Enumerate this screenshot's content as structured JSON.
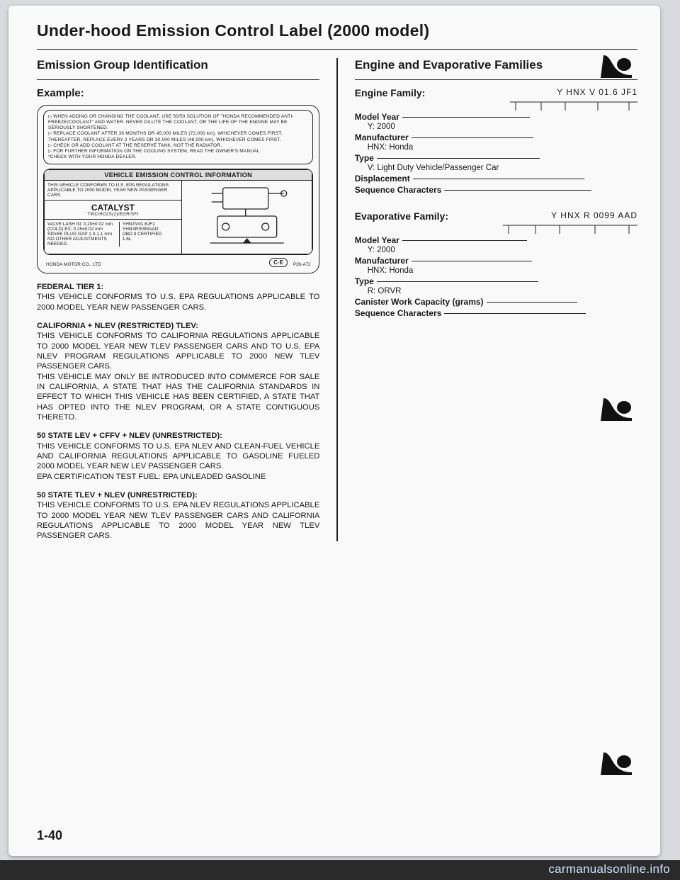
{
  "title": "Under-hood Emission Control Label (2000 model)",
  "left": {
    "section": "Emission Group Identification",
    "example": "Example:",
    "label_box": {
      "notes": [
        "▷ WHEN ADDING OR CHANGING THE COOLANT, USE 50/50 SOLUTION OF \"HONDA RECOMMENDED ANTI-FREEZE/COOLANT\" AND WATER. NEVER DILUTE THE COOLANT, OR THE LIFE OF THE ENGINE MAY BE SERIOUSLY SHORTENED.",
        "▷ REPLACE COOLANT AFTER 36 MONTHS OR 45,000 MILES (72,000 km), WHICHEVER COMES FIRST. THEREAFTER, REPLACE EVERY 2 YEARS OR 30,000 MILES (48,000 km), WHICHEVER COMES FIRST.",
        "▷ CHECK OR ADD COOLANT AT THE RESERVE TANK, NOT THE RADIATOR.",
        "▷ FOR FURTHER INFORMATION ON THE COOLING SYSTEM, READ THE OWNER'S MANUAL.",
        "*CHECK WITH YOUR HONDA DEALER."
      ],
      "veci_header": "VEHICLE EMISSION CONTROL INFORMATION",
      "veci_note": "THIS VEHICLE CONFORMS TO U.S. EPA REGULATIONS APPLICABLE TO 2000 MODEL YEAR NEW PASSENGER CARS.",
      "catalyst": "CATALYST",
      "catalyst_sub": "TWC/HO2S(2)/EGR/SFI",
      "specs": [
        "VALVE LASH   IN: 0.20±0.02 mm",
        "(COLD)       EX: 0.25±0.02 mm",
        "SPARK PLUG GAP        1.0-1.1 mm",
        "NO OTHER ADJUSTMENTS NEEDED."
      ],
      "right_specs": [
        "YHNXV01.6JF1",
        "YHNXR0099AAD",
        "OBD II CERTIFIED",
        "1.6L"
      ],
      "ce": "C·E",
      "ce_sub": "P2N-A72",
      "hmc": "HONDA MOTOR CO., LTD"
    },
    "paragraphs": [
      {
        "heading": "FEDERAL TIER 1:",
        "body": "THIS VEHICLE CONFORMS TO U.S. EPA REGULATIONS APPLICABLE TO 2000 MODEL YEAR NEW PASSENGER CARS."
      },
      {
        "heading": "CALIFORNIA + NLEV (RESTRICTED) TLEV:",
        "body": "THIS VEHICLE CONFORMS TO CALIFORNIA REGULATIONS APPLICABLE TO 2000 MODEL YEAR NEW TLEV PASSENGER CARS AND TO U.S. EPA NLEV PROGRAM REGULATIONS APPLICABLE TO 2000 NEW TLEV PASSENGER CARS.\nTHIS VEHICLE MAY ONLY BE INTRODUCED INTO COMMERCE FOR SALE IN CALIFORNIA, A STATE THAT HAS THE CALIFORNIA STANDARDS IN EFFECT TO WHICH THIS VEHICLE HAS BEEN CERTIFIED, A STATE THAT HAS OPTED INTO THE NLEV PROGRAM, OR A STATE CONTIGUOUS THERETO."
      },
      {
        "heading": "50 STATE LEV + CFFV + NLEV (UNRESTRICTED):",
        "body": "THIS VEHICLE CONFORMS TO U.S. EPA NLEV AND CLEAN-FUEL VEHICLE AND CALIFORNIA REGULATIONS APPLICABLE TO GASOLINE FUELED 2000 MODEL YEAR NEW LEV PASSENGER CARS.\nEPA CERTIFICATION TEST FUEL: EPA UNLEADED GASOLINE"
      },
      {
        "heading": "50 STATE TLEV + NLEV (UNRESTRICTED):",
        "body": "THIS VEHICLE CONFORMS TO U.S. EPA NLEV REGULATIONS APPLICABLE TO 2000 MODEL YEAR NEW TLEV PASSENGER CARS AND CALIFORNIA REGULATIONS APPLICABLE TO 2000 MODEL YEAR NEW TLEV PASSENGER CARS."
      }
    ]
  },
  "right": {
    "section": "Engine and Evaporative Families",
    "engine": {
      "title": "Engine Family:",
      "code": "Y HNX V 01.6 JF1",
      "rows": [
        {
          "k": "Model Year",
          "v": "Y: 2000",
          "dash": 180
        },
        {
          "k": "Manufacturer",
          "v": "HNX: Honda",
          "dash": 172
        },
        {
          "k": "Type",
          "v": "V: Light Duty Vehicle/Passenger Car",
          "dash": 230
        },
        {
          "k": "Displacement",
          "v": "",
          "dash": 242
        },
        {
          "k": "Sequence Characters",
          "v": "",
          "dash": 208
        }
      ]
    },
    "evap": {
      "title": "Evaporative Family:",
      "code": "Y HNX R 0099 AAD",
      "rows": [
        {
          "k": "Model Year",
          "v": "Y: 2000",
          "dash": 176
        },
        {
          "k": "Manufacturer",
          "v": "HNX: Honda",
          "dash": 170
        },
        {
          "k": "Type",
          "v": "R: ORVR",
          "dash": 228
        },
        {
          "k": "Canister Work Capacity (grams)",
          "v": "",
          "dash": 128
        },
        {
          "k": "Sequence Characters",
          "v": "",
          "dash": 200
        }
      ]
    }
  },
  "page_number": "1-40",
  "watermark": "carmanualsonline.info"
}
